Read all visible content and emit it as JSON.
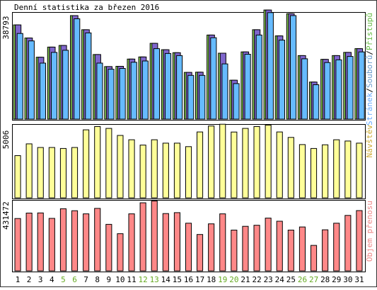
{
  "chart_data": {
    "type": "bar",
    "title": "Denní statistika za březen 2016",
    "categories": [
      "1",
      "2",
      "3",
      "4",
      "5",
      "6",
      "7",
      "8",
      "9",
      "10",
      "11",
      "12",
      "13",
      "14",
      "15",
      "16",
      "17",
      "18",
      "19",
      "20",
      "21",
      "22",
      "23",
      "24",
      "25",
      "26",
      "27",
      "28",
      "29",
      "30",
      "31"
    ],
    "weekend_days": [
      "5",
      "6",
      "12",
      "13",
      "19",
      "20",
      "26",
      "27"
    ],
    "panels": [
      {
        "name": "requests",
        "ylabel_max": "38793",
        "ymax": 38793,
        "legend": [
          {
            "label": "Stránek",
            "color": "#66aaff"
          },
          {
            "label": "Souborů",
            "color": "#6699cc"
          },
          {
            "label": "Přístupů",
            "color": "#66bb44"
          }
        ],
        "legend_separator": "/",
        "series": [
          {
            "name": "Přístupů",
            "color": "#88cc55",
            "values": [
              35300,
              30400,
              23200,
              27000,
              27600,
              38800,
              33500,
              24200,
              19700,
              19800,
              22500,
              23300,
              28400,
              26000,
              24900,
              17500,
              17600,
              31500,
              24700,
              14600,
              25200,
              33500,
              40900,
              31200,
              39500,
              23800,
              13900,
              22400,
              23800,
              25000,
              26400
            ]
          },
          {
            "name": "Souborů",
            "color": "#7f66cc",
            "values": [
              35300,
              30400,
              23200,
              27000,
              27600,
              38800,
              33500,
              24200,
              19700,
              19800,
              22500,
              23300,
              28400,
              26000,
              24900,
              17500,
              17600,
              31500,
              24700,
              14600,
              25200,
              33500,
              40900,
              31200,
              39500,
              23800,
              13900,
              22400,
              23800,
              25000,
              26400
            ]
          },
          {
            "name": "Stránek",
            "color": "#66bbff",
            "values": [
              32100,
              29300,
              21000,
              25000,
              25800,
              37600,
              32300,
              21000,
              18700,
              19000,
              21300,
              21800,
              26400,
              24600,
              23800,
              16400,
              16400,
              30500,
              20700,
              13300,
              24300,
              31500,
              39900,
              29600,
              38800,
              22600,
              12900,
              21200,
              22200,
              23500,
              25200
            ]
          }
        ]
      },
      {
        "name": "visits",
        "ylabel_max": "5006",
        "ymax": 5006,
        "legend": [
          {
            "label": "Návštěv",
            "color": "#ccaa33"
          }
        ],
        "series": [
          {
            "name": "Návštěv",
            "color": "#ffff99",
            "values": [
              3010,
              3850,
              3590,
              3590,
              3520,
              3590,
              4850,
              5080,
              4950,
              4450,
              4140,
              3760,
              4140,
              3900,
              3900,
              3650,
              4700,
              5120,
              5250,
              4690,
              4950,
              5080,
              5190,
              4700,
              4310,
              3800,
              3520,
              3780,
              4140,
              4050,
              3900
            ]
          }
        ]
      },
      {
        "name": "transfer",
        "ylabel_max": "431472",
        "ymax": 431472,
        "legend": [
          {
            "label": "Objem přenosu",
            "color": "#ee8888"
          }
        ],
        "series": [
          {
            "name": "Objem přenosu",
            "color": "#ff8888",
            "values": [
              335000,
              370000,
              371000,
              336000,
              398000,
              385000,
              365000,
              400000,
              298000,
              238000,
              365000,
              436000,
              448000,
              367000,
              373000,
              305000,
              233000,
              301000,
              365000,
              261000,
              285000,
              292000,
              338000,
              318000,
              261000,
              281000,
              163000,
              263000,
              305000,
              355000,
              386000
            ]
          }
        ]
      }
    ],
    "grid": false
  }
}
